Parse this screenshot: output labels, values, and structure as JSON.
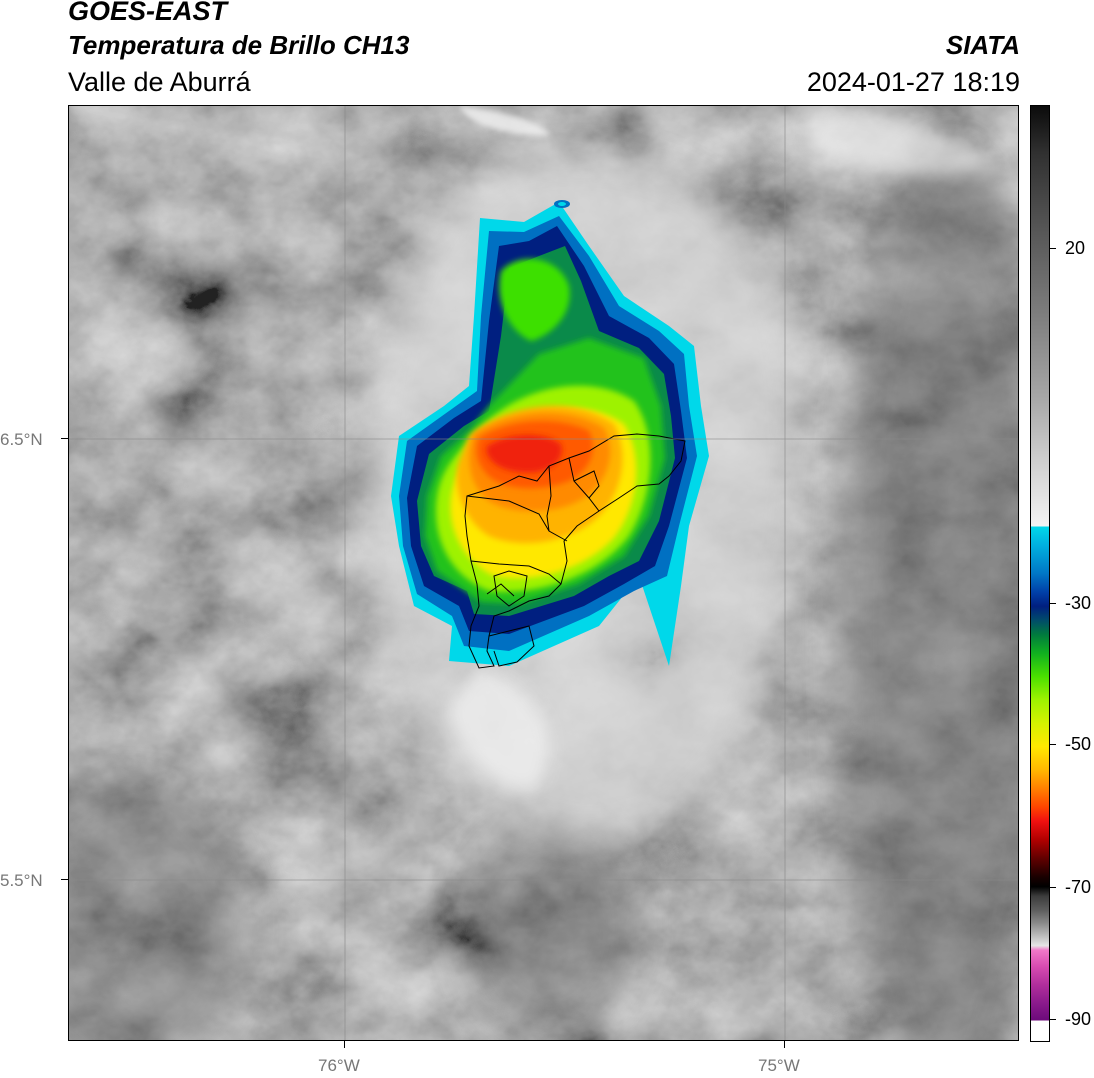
{
  "header": {
    "title_line1": "GOES-EAST",
    "title_line2": "Temperatura de Brillo CH13",
    "organization": "SIATA",
    "region": "Valle de Aburrá",
    "datetime": "2024-01-27 18:19"
  },
  "map": {
    "latitude_labels": [
      "6.5°N",
      "5.5°N"
    ],
    "longitude_labels": [
      "76°W",
      "75°W"
    ],
    "colors": {
      "frame": "#000000",
      "gridline": "#8a8a8a",
      "boundary": "#000000"
    }
  },
  "colorbar": {
    "tick_labels": [
      "20",
      "-30",
      "-50",
      "-70",
      "-90"
    ],
    "tick_values": [
      20,
      -30,
      -50,
      -70,
      -90
    ],
    "range": [
      -92,
      40
    ]
  }
}
